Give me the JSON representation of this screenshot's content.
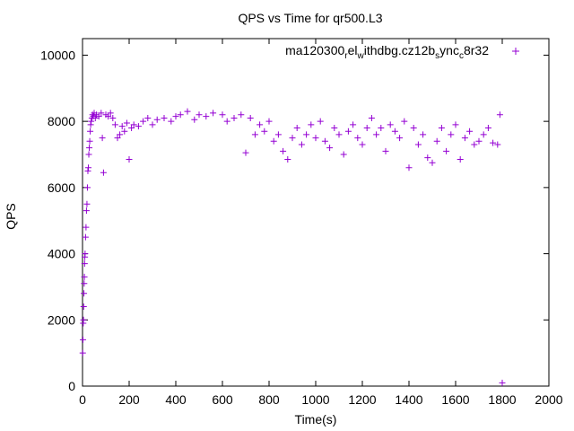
{
  "chart_data": {
    "type": "scatter",
    "title": "QPS vs Time for qr500.L3",
    "xlabel": "Time(s)",
    "ylabel": "QPS",
    "xlim": [
      0,
      2000
    ],
    "ylim": [
      0,
      10500
    ],
    "xticks": [
      0,
      200,
      400,
      600,
      800,
      1000,
      1200,
      1400,
      1600,
      1800,
      2000
    ],
    "yticks": [
      0,
      2000,
      4000,
      6000,
      8000,
      10000
    ],
    "grid": false,
    "legend_position": "top-right",
    "marker": "plus",
    "series": [
      {
        "name": "ma120300_rel_withdbg.cz12b_sync_c8r32",
        "color": "#9400d3",
        "points": [
          [
            1,
            1000
          ],
          [
            2,
            1400
          ],
          [
            3,
            1900
          ],
          [
            4,
            2000
          ],
          [
            5,
            2400
          ],
          [
            6,
            2800
          ],
          [
            7,
            3100
          ],
          [
            8,
            3300
          ],
          [
            9,
            3700
          ],
          [
            10,
            3900
          ],
          [
            11,
            4000
          ],
          [
            13,
            4500
          ],
          [
            15,
            4800
          ],
          [
            17,
            5300
          ],
          [
            19,
            5500
          ],
          [
            21,
            6000
          ],
          [
            23,
            6500
          ],
          [
            25,
            6600
          ],
          [
            27,
            7000
          ],
          [
            29,
            7200
          ],
          [
            31,
            7400
          ],
          [
            33,
            7700
          ],
          [
            35,
            7900
          ],
          [
            37,
            8000
          ],
          [
            40,
            8100
          ],
          [
            43,
            8200
          ],
          [
            46,
            8150
          ],
          [
            50,
            8250
          ],
          [
            55,
            8100
          ],
          [
            60,
            8200
          ],
          [
            70,
            8150
          ],
          [
            80,
            8250
          ],
          [
            85,
            7500
          ],
          [
            90,
            6450
          ],
          [
            100,
            8200
          ],
          [
            110,
            8150
          ],
          [
            120,
            8250
          ],
          [
            130,
            8100
          ],
          [
            140,
            7900
          ],
          [
            150,
            7500
          ],
          [
            160,
            7600
          ],
          [
            170,
            7850
          ],
          [
            180,
            7700
          ],
          [
            190,
            7950
          ],
          [
            200,
            6850
          ],
          [
            210,
            7800
          ],
          [
            220,
            7900
          ],
          [
            240,
            7850
          ],
          [
            260,
            8000
          ],
          [
            280,
            8100
          ],
          [
            300,
            7900
          ],
          [
            320,
            8050
          ],
          [
            350,
            8100
          ],
          [
            380,
            8000
          ],
          [
            400,
            8150
          ],
          [
            420,
            8200
          ],
          [
            450,
            8300
          ],
          [
            480,
            8050
          ],
          [
            500,
            8200
          ],
          [
            530,
            8150
          ],
          [
            560,
            8250
          ],
          [
            600,
            8200
          ],
          [
            620,
            8000
          ],
          [
            650,
            8100
          ],
          [
            680,
            8200
          ],
          [
            700,
            7050
          ],
          [
            720,
            8100
          ],
          [
            740,
            7600
          ],
          [
            760,
            7900
          ],
          [
            780,
            7700
          ],
          [
            800,
            8000
          ],
          [
            820,
            7400
          ],
          [
            840,
            7600
          ],
          [
            860,
            7100
          ],
          [
            880,
            6850
          ],
          [
            900,
            7500
          ],
          [
            920,
            7800
          ],
          [
            940,
            7300
          ],
          [
            960,
            7600
          ],
          [
            980,
            7900
          ],
          [
            1000,
            7500
          ],
          [
            1020,
            8000
          ],
          [
            1040,
            7400
          ],
          [
            1060,
            7200
          ],
          [
            1080,
            7800
          ],
          [
            1100,
            7600
          ],
          [
            1120,
            7000
          ],
          [
            1140,
            7700
          ],
          [
            1160,
            7900
          ],
          [
            1180,
            7500
          ],
          [
            1200,
            7300
          ],
          [
            1220,
            7800
          ],
          [
            1240,
            8100
          ],
          [
            1260,
            7600
          ],
          [
            1280,
            7800
          ],
          [
            1300,
            7100
          ],
          [
            1320,
            7900
          ],
          [
            1340,
            7700
          ],
          [
            1360,
            7500
          ],
          [
            1380,
            8000
          ],
          [
            1400,
            6600
          ],
          [
            1420,
            7800
          ],
          [
            1440,
            7300
          ],
          [
            1460,
            7600
          ],
          [
            1480,
            6900
          ],
          [
            1500,
            6750
          ],
          [
            1520,
            7400
          ],
          [
            1540,
            7800
          ],
          [
            1560,
            7100
          ],
          [
            1580,
            7600
          ],
          [
            1600,
            7900
          ],
          [
            1620,
            6850
          ],
          [
            1640,
            7500
          ],
          [
            1660,
            7700
          ],
          [
            1680,
            7300
          ],
          [
            1700,
            7400
          ],
          [
            1720,
            7600
          ],
          [
            1740,
            7800
          ],
          [
            1760,
            7350
          ],
          [
            1780,
            7300
          ],
          [
            1790,
            8200
          ],
          [
            1800,
            100
          ]
        ]
      }
    ]
  }
}
